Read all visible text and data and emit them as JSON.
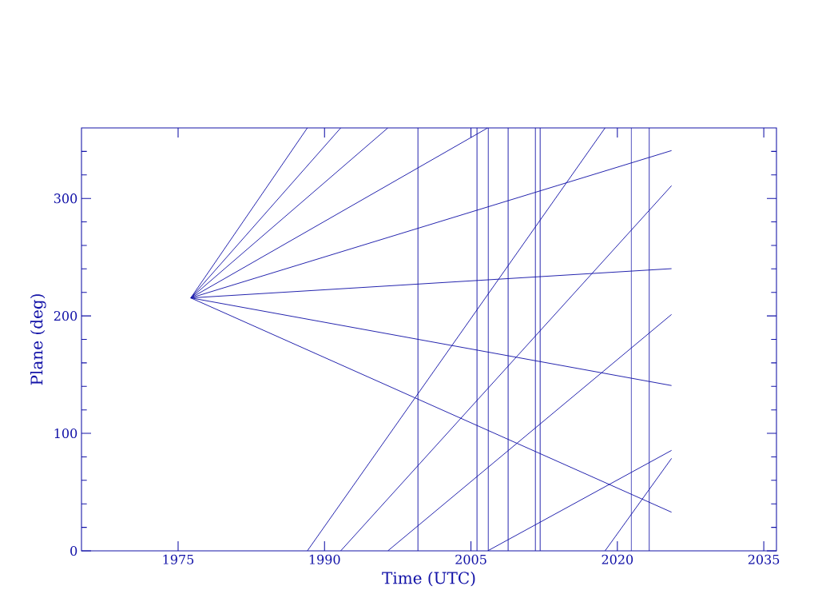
{
  "chart_data": {
    "type": "line",
    "xlabel": "Time (UTC)",
    "ylabel": "Plane (deg)",
    "xlim": [
      1965.1,
      2036.3
    ],
    "ylim": [
      0,
      360
    ],
    "xticks": [
      1975,
      1990,
      2005,
      2020,
      2035
    ],
    "yticks": [
      0,
      {
        "value": 20,
        "label": null
      },
      {
        "value": 40,
        "label": null
      },
      {
        "value": 60,
        "label": null
      },
      {
        "value": 80,
        "label": null
      },
      100,
      {
        "value": 120,
        "label": null
      },
      {
        "value": 140,
        "label": null
      },
      {
        "value": 160,
        "label": null
      },
      {
        "value": 180,
        "label": null
      },
      200,
      {
        "value": 220,
        "label": null
      },
      {
        "value": 240,
        "label": null
      },
      {
        "value": 260,
        "label": null
      },
      {
        "value": 280,
        "label": null
      },
      300,
      {
        "value": 320,
        "label": null
      },
      {
        "value": 340,
        "label": null
      }
    ],
    "series": [
      {
        "color": "#1414a8",
        "x": [
          1976.3,
          1988.24
        ],
        "values": [
          215.3,
          360
        ]
      },
      {
        "color": "#1414a8",
        "x": [
          1988.24,
          2018.74
        ],
        "values": [
          0,
          360
        ]
      },
      {
        "color": "#1414a8",
        "x": [
          2018.74,
          2025.55
        ],
        "values": [
          0,
          78.7
        ]
      },
      {
        "color": "#1414a8",
        "x": [
          1976.3,
          1991.66
        ],
        "values": [
          215.3,
          360
        ]
      },
      {
        "color": "#1414a8",
        "x": [
          1991.66,
          2025.55
        ],
        "values": [
          0,
          310.8
        ]
      },
      {
        "color": "#1414a8",
        "x": [
          1976.3,
          1996.49
        ],
        "values": [
          215.3,
          360
        ]
      },
      {
        "color": "#1414a8",
        "x": [
          1996.49,
          2025.55
        ],
        "values": [
          0,
          201.2
        ]
      },
      {
        "color": "#1414a8",
        "x": [
          1976.3,
          2006.72
        ],
        "values": [
          215.3,
          360
        ]
      },
      {
        "color": "#1414a8",
        "x": [
          2006.72,
          2025.55
        ],
        "values": [
          0,
          85.5
        ]
      },
      {
        "color": "#1414a8",
        "x": [
          1976.3,
          2025.55
        ],
        "values": [
          215.3,
          340.7
        ]
      },
      {
        "color": "#1414a8",
        "x": [
          1976.3,
          2025.55
        ],
        "values": [
          215.3,
          240.2
        ]
      },
      {
        "color": "#1414a8",
        "x": [
          1976.3,
          2025.55
        ],
        "values": [
          215.3,
          140.7
        ]
      },
      {
        "color": "#1414a8",
        "x": [
          1976.3,
          2025.55
        ],
        "values": [
          215.3,
          32.9
        ]
      }
    ],
    "ref_lines": [
      {
        "axis": "x",
        "value": 1999.57,
        "color": "#1414a8"
      },
      {
        "axis": "x",
        "value": 2005.62,
        "color": "#1414a8"
      },
      {
        "axis": "x",
        "value": 2006.77,
        "color": "#1414a8"
      },
      {
        "axis": "x",
        "value": 2008.81,
        "color": "#1414a8"
      },
      {
        "axis": "x",
        "value": 2011.6,
        "color": "#1414a8"
      },
      {
        "axis": "x",
        "value": 2012.09,
        "color": "#1414a8"
      },
      {
        "axis": "x",
        "value": 2021.42,
        "color": "#1414a8"
      },
      {
        "axis": "x",
        "value": 2023.27,
        "color": "#1414a8"
      }
    ]
  }
}
